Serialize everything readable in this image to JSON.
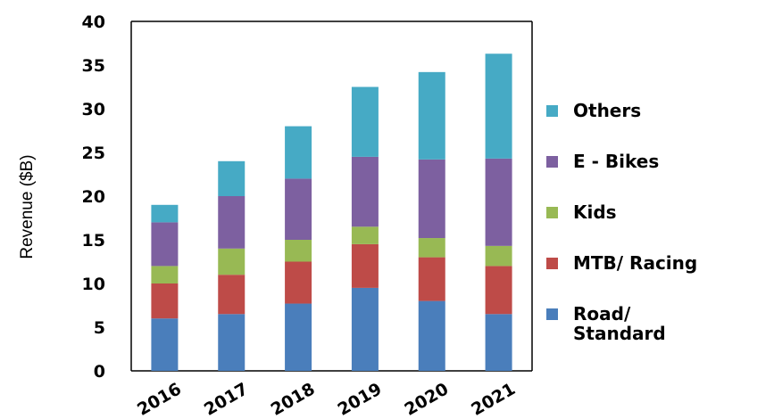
{
  "chart_data": {
    "type": "bar",
    "stacked": true,
    "categories": [
      "2016",
      "2017",
      "2018",
      "2019",
      "2020",
      "2021"
    ],
    "ylabel": "Revenue ($B)",
    "ylim": [
      0,
      40
    ],
    "yticks": [
      0,
      5,
      10,
      15,
      20,
      25,
      30,
      35,
      40
    ],
    "grid": false,
    "legend_position": "right",
    "series": [
      {
        "name": "Road/ Standard",
        "legend_lines": [
          "Road/",
          "Standard"
        ],
        "color": "#4a7ebb",
        "values": [
          6,
          6.5,
          7.7,
          9.5,
          8,
          6.5
        ]
      },
      {
        "name": "MTB/ Racing",
        "legend_lines": [
          "MTB/ Racing"
        ],
        "color": "#be4b48",
        "values": [
          4,
          4.5,
          4.8,
          5,
          5,
          5.5
        ]
      },
      {
        "name": "Kids",
        "legend_lines": [
          "Kids"
        ],
        "color": "#98b954",
        "values": [
          2,
          3,
          2.5,
          2,
          2.2,
          2.3
        ]
      },
      {
        "name": "E - Bikes",
        "legend_lines": [
          "E - Bikes"
        ],
        "color": "#7d60a0",
        "values": [
          5,
          6,
          7,
          8,
          9,
          10
        ]
      },
      {
        "name": "Others",
        "legend_lines": [
          "Others"
        ],
        "color": "#46aac5",
        "values": [
          2,
          4,
          6,
          8,
          10,
          12
        ]
      }
    ]
  }
}
